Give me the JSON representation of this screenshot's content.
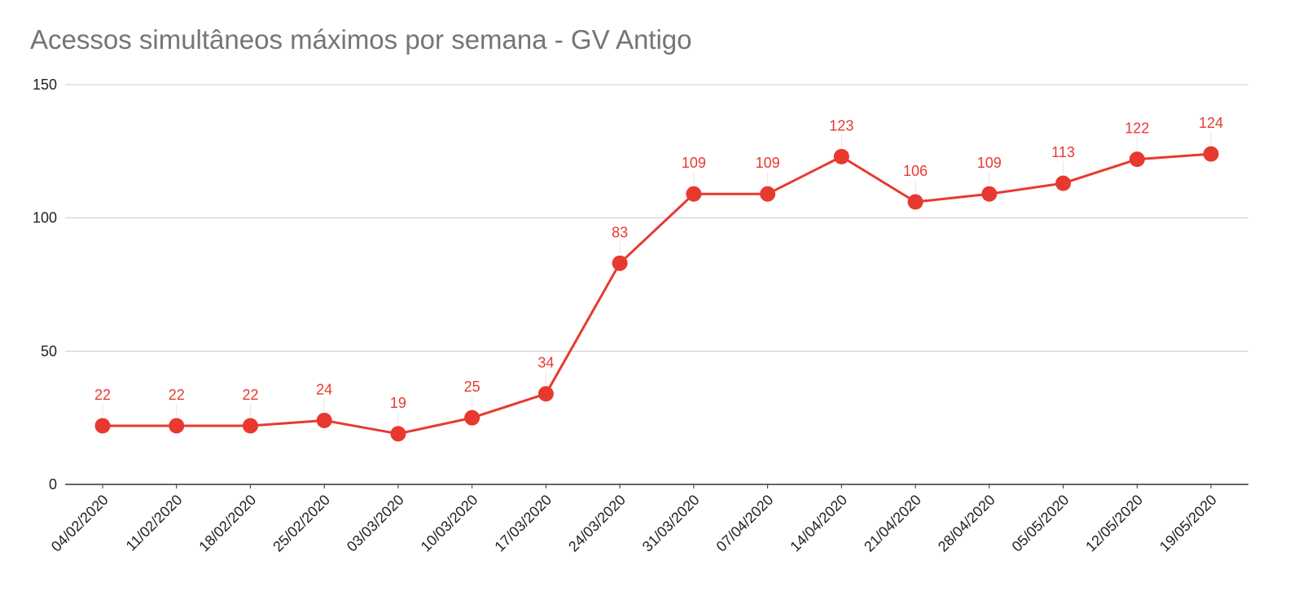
{
  "chart_data": {
    "type": "line",
    "title": "Acessos simultâneos máximos por semana - GV Antigo",
    "xlabel": "",
    "ylabel": "",
    "categories": [
      "04/02/2020",
      "11/02/2020",
      "18/02/2020",
      "25/02/2020",
      "03/03/2020",
      "10/03/2020",
      "17/03/2020",
      "24/03/2020",
      "31/03/2020",
      "07/04/2020",
      "14/04/2020",
      "21/04/2020",
      "28/04/2020",
      "05/05/2020",
      "12/05/2020",
      "19/05/2020"
    ],
    "series": [
      {
        "values": [
          22,
          22,
          22,
          24,
          19,
          25,
          34,
          83,
          109,
          109,
          123,
          106,
          109,
          113,
          122,
          124
        ],
        "color": "#e8392f"
      }
    ],
    "ylim": [
      0,
      150
    ],
    "yticks": [
      "0",
      "50",
      "100",
      "150"
    ],
    "data_labels": true,
    "grid": true,
    "legend": "none"
  }
}
